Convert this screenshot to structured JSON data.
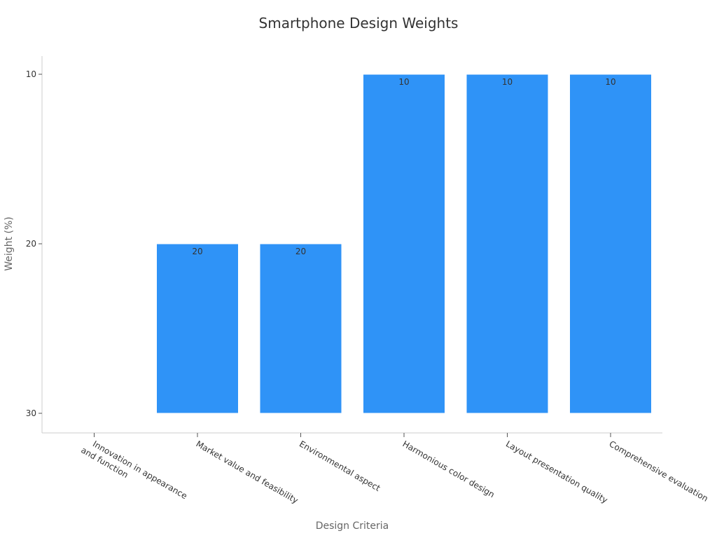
{
  "chart_data": {
    "type": "bar",
    "title": "Smartphone Design Weights",
    "xlabel": "Design Criteria",
    "ylabel": "Weight (%)",
    "y_axis_inverted": true,
    "ylim": [
      30,
      10
    ],
    "yticks": [
      10,
      20,
      30
    ],
    "categories": [
      "Innovation in appearance and function",
      "Market value and feasibility",
      "Environmental aspect",
      "Harmonious color design",
      "Layout presentation quality",
      "Comprehensive evaluation"
    ],
    "category_label_lines": [
      [
        "Innovation in appearance",
        "and function"
      ],
      [
        "Market value and feasibility"
      ],
      [
        "Environmental aspect"
      ],
      [
        "Harmonious color design"
      ],
      [
        "Layout presentation quality"
      ],
      [
        "Comprehensive evaluation"
      ]
    ],
    "values": [
      30,
      20,
      20,
      10,
      10,
      10
    ],
    "data_labels": [
      "",
      "20",
      "20",
      "10",
      "10",
      "10"
    ],
    "bar_color": "#2f93f7",
    "grid": false,
    "legend": "none"
  }
}
